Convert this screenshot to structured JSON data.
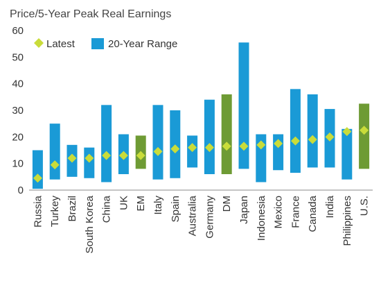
{
  "chart_data": {
    "type": "bar",
    "title": "",
    "ylabel": "Price/5-Year Peak Real Earnings",
    "xlabel": "",
    "ylim": [
      0,
      60
    ],
    "yticks": [
      0,
      10,
      20,
      30,
      40,
      50,
      60
    ],
    "grid": false,
    "legend_position": "top-left",
    "legend": {
      "latest": "Latest",
      "range": "20-Year Range"
    },
    "colors": {
      "range_default": "#1a9ad6",
      "range_highlight": "#6e9b34",
      "latest_marker": "#c9dc3a"
    },
    "categories": [
      "Russia",
      "Turkey",
      "Brazil",
      "South Korea",
      "China",
      "UK",
      "EM",
      "Italy",
      "Spain",
      "Australia",
      "Germany",
      "DM",
      "Japan",
      "Indonesia",
      "Mexico",
      "France",
      "Canada",
      "India",
      "Philippines",
      "U.S."
    ],
    "highlighted": [
      "EM",
      "DM",
      "U.S."
    ],
    "range_low": [
      0.5,
      4,
      5,
      4.5,
      3,
      6,
      8,
      4,
      4.5,
      8.5,
      6,
      6,
      8,
      3,
      7.5,
      6.5,
      8.5,
      8.5,
      4,
      8
    ],
    "range_high": [
      15,
      25,
      17,
      16,
      32,
      21,
      20.5,
      32,
      30,
      20.5,
      34,
      36,
      55.5,
      21,
      21,
      38,
      36,
      30.5,
      23,
      32.5
    ],
    "latest": [
      4.5,
      9.5,
      12,
      12,
      13,
      13,
      13,
      14.5,
      15.5,
      16,
      16,
      16.5,
      16.5,
      17,
      17.5,
      18.5,
      19,
      20,
      22,
      22.5
    ]
  }
}
